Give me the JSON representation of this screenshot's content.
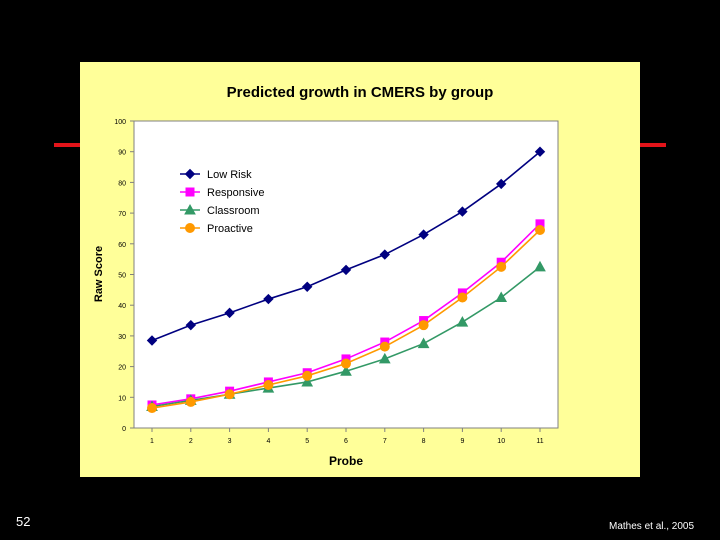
{
  "slide": {
    "number": "52",
    "citation": "Mathes et al., 2005"
  },
  "chart_data": {
    "type": "line",
    "title": "Predicted growth in CMERS by group",
    "xlabel": "Probe",
    "ylabel": "Raw Score",
    "ylim": [
      0,
      100
    ],
    "yticks": [
      0,
      10,
      20,
      30,
      40,
      50,
      60,
      70,
      80,
      90,
      100
    ],
    "x": [
      1,
      2,
      3,
      4,
      5,
      6,
      7,
      8,
      9,
      10,
      11
    ],
    "grid": false,
    "legend_position": "top-left",
    "series": [
      {
        "name": "Low Risk",
        "color": "#000080",
        "marker": "diamond",
        "values": [
          28.5,
          33.5,
          37.5,
          42,
          46,
          51.5,
          56.5,
          63,
          70.5,
          79.5,
          90
        ]
      },
      {
        "name": "Responsive",
        "color": "#ff00ff",
        "marker": "square",
        "values": [
          7.5,
          9.5,
          12,
          15,
          18,
          22.5,
          28,
          35,
          44,
          54,
          66.5
        ]
      },
      {
        "name": "Classroom",
        "color": "#339966",
        "marker": "triangle",
        "values": [
          7,
          9,
          11,
          13,
          15,
          18.5,
          22.5,
          27.5,
          34.5,
          42.5,
          52.5
        ]
      },
      {
        "name": "Proactive",
        "color": "#ff9900",
        "marker": "circle",
        "values": [
          6.5,
          8.5,
          11,
          14,
          17,
          21,
          26.5,
          33.5,
          42.5,
          52.5,
          64.5
        ]
      }
    ]
  }
}
